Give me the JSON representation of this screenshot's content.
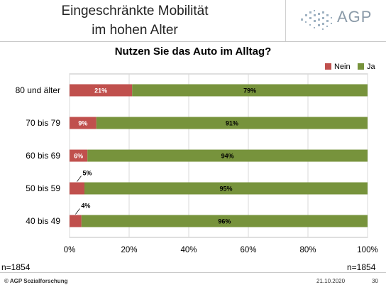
{
  "header": {
    "title_line1": "Eingeschränkte Mobilität",
    "title_line2": "im hohen Alter",
    "logo_text": "AGP"
  },
  "colors": {
    "nein": "#c0504d",
    "ja": "#77933c"
  },
  "chart_data": {
    "type": "bar",
    "orientation": "horizontal",
    "stacked": true,
    "title": "Nutzen Sie das Auto im Alltag?",
    "categories": [
      "80 und älter",
      "70 bis 79",
      "60 bis 69",
      "50 bis 59",
      "40 bis 49"
    ],
    "series": [
      {
        "name": "Nein",
        "values": [
          21,
          9,
          6,
          5,
          4
        ],
        "labels": [
          "21%",
          "9%",
          "6%",
          "5%",
          "4%"
        ]
      },
      {
        "name": "Ja",
        "values": [
          79,
          91,
          94,
          95,
          96
        ],
        "labels": [
          "79%",
          "91%",
          "94%",
          "95%",
          "96%"
        ]
      }
    ],
    "xlim": [
      0,
      100
    ],
    "xticks": [
      "0%",
      "20%",
      "40%",
      "60%",
      "80%",
      "100%"
    ],
    "grid": true,
    "legend_position": "top-right"
  },
  "notes": {
    "n_left": "n=1854",
    "n_right": "n=1854"
  },
  "footer": {
    "source": "© AGP Sozialforschung",
    "date": "21.10.2020",
    "page": "30"
  }
}
